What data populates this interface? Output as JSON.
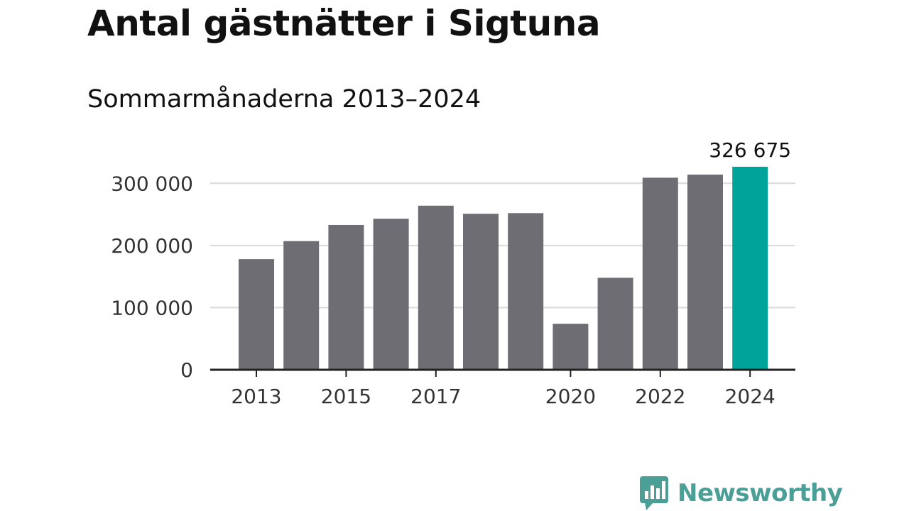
{
  "chart_data": {
    "type": "bar",
    "title": "Antal gästnätter i Sigtuna",
    "subtitle": "Sommarmånaderna 2013–2024",
    "categories": [
      "2013",
      "2014",
      "2015",
      "2016",
      "2017",
      "2018",
      "2019",
      "2020",
      "2021",
      "2022",
      "2023",
      "2024"
    ],
    "x_tick_labels": [
      "2013",
      "2015",
      "2017",
      "2020",
      "2022",
      "2024"
    ],
    "values": [
      178000,
      207000,
      233000,
      243000,
      264000,
      251000,
      252000,
      74000,
      148000,
      309000,
      314000,
      326675
    ],
    "highlight_index": 11,
    "highlight_label": "326 675",
    "y_ticks": [
      0,
      100000,
      200000,
      300000
    ],
    "y_tick_labels": [
      "0",
      "100 000",
      "200 000",
      "300 000"
    ],
    "ylim": [
      0,
      330000
    ],
    "grid": true,
    "bar_color": "#6e6d74",
    "highlight_color": "#00a398",
    "grid_color": "#d9d9d9",
    "axis_color": "#222222"
  },
  "brand": {
    "name": "Newsworthy",
    "icon": "newsworthy-logo-icon",
    "color": "#4a9f97"
  }
}
